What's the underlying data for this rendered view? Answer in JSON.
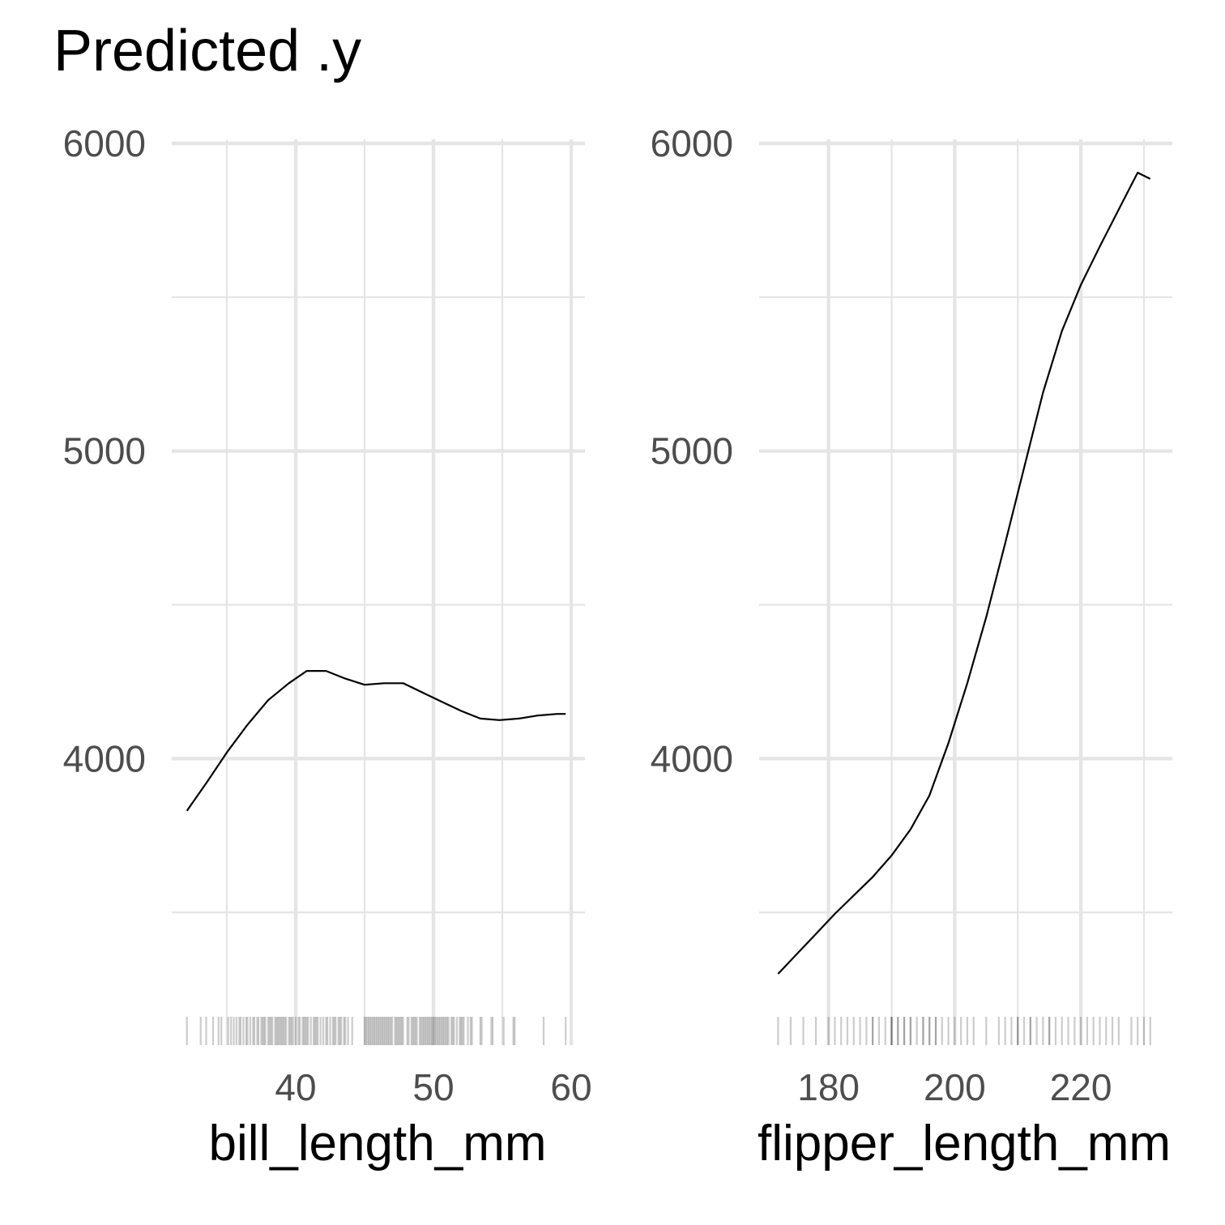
{
  "title": "Predicted .y",
  "colors": {
    "grid": "#e5e5e5",
    "line": "#000000",
    "tick_text": "#4d4d4d",
    "rug": "#000000"
  },
  "chart_data": [
    {
      "type": "line",
      "xlabel": "bill_length_mm",
      "ylabel": "",
      "xlim": [
        31,
        61
      ],
      "ylim": [
        3200,
        6000
      ],
      "x_ticks": [
        40,
        50,
        60
      ],
      "x_minor": [
        35,
        45,
        55
      ],
      "y_ticks": [
        4000,
        5000,
        6000
      ],
      "y_tick_labels": [
        "4000",
        "5000",
        "6000"
      ],
      "y_minor": [
        3500,
        4500,
        5500
      ],
      "grid": true,
      "series": [
        {
          "x": [
            32.1,
            33.5,
            35,
            36.5,
            38,
            39.5,
            40.8,
            42.2,
            43.6,
            45,
            46.4,
            47.8,
            49.2,
            50.6,
            52,
            53.4,
            54.8,
            56.2,
            57.6,
            59,
            59.6
          ],
          "y": [
            3830,
            3920,
            4020,
            4110,
            4190,
            4245,
            4285,
            4285,
            4260,
            4240,
            4245,
            4245,
            4215,
            4185,
            4155,
            4130,
            4125,
            4130,
            4140,
            4145,
            4145
          ]
        }
      ],
      "rug": [
        32.1,
        33.1,
        33.5,
        34.0,
        34.4,
        34.6,
        35.1,
        35.3,
        35.5,
        35.7,
        35.9,
        36.0,
        36.2,
        36.4,
        36.5,
        36.7,
        36.9,
        37.0,
        37.2,
        37.3,
        37.5,
        37.6,
        37.7,
        37.8,
        38.0,
        38.1,
        38.2,
        38.3,
        38.5,
        38.6,
        38.7,
        38.8,
        38.9,
        39.0,
        39.1,
        39.2,
        39.3,
        39.5,
        39.6,
        39.7,
        39.8,
        40.0,
        40.2,
        40.3,
        40.5,
        40.6,
        40.7,
        40.8,
        40.9,
        41.1,
        41.3,
        41.4,
        41.5,
        41.6,
        41.8,
        42.0,
        42.2,
        42.3,
        42.5,
        42.7,
        42.8,
        42.9,
        43.1,
        43.2,
        43.3,
        43.5,
        43.6,
        43.8,
        44.1,
        45.0,
        45.1,
        45.2,
        45.3,
        45.4,
        45.5,
        45.6,
        45.7,
        45.8,
        45.9,
        46.0,
        46.1,
        46.2,
        46.3,
        46.4,
        46.5,
        46.6,
        46.7,
        46.8,
        46.9,
        47.0,
        47.2,
        47.3,
        47.4,
        47.5,
        47.6,
        47.7,
        47.8,
        48.1,
        48.2,
        48.4,
        48.5,
        48.6,
        48.7,
        48.8,
        49.0,
        49.1,
        49.2,
        49.3,
        49.4,
        49.5,
        49.6,
        49.7,
        49.8,
        49.9,
        50.0,
        50.1,
        50.2,
        50.3,
        50.4,
        50.5,
        50.6,
        50.7,
        50.8,
        50.9,
        51.0,
        51.1,
        51.3,
        51.4,
        51.5,
        51.7,
        51.9,
        52.0,
        52.1,
        52.2,
        52.5,
        52.7,
        52.8,
        53.4,
        53.5,
        54.2,
        54.3,
        55.1,
        55.8,
        55.9,
        58.0,
        59.6
      ],
      "rug_extent": [
        31,
        61
      ]
    },
    {
      "type": "line",
      "xlabel": "flipper_length_mm",
      "ylabel": "",
      "xlim": [
        169,
        234.5
      ],
      "ylim": [
        3200,
        6000
      ],
      "x_ticks": [
        180,
        200,
        220
      ],
      "x_minor": [
        190,
        210,
        230
      ],
      "y_ticks": [
        4000,
        5000,
        6000
      ],
      "y_tick_labels": [
        "4000",
        "5000",
        "6000"
      ],
      "y_minor": [
        3500,
        4500,
        5500
      ],
      "grid": true,
      "series": [
        {
          "x": [
            172,
            175,
            178,
            181,
            184,
            187,
            190,
            193,
            196,
            199,
            202,
            205,
            208,
            211,
            214,
            217,
            220,
            223,
            226,
            229,
            231
          ],
          "y": [
            3300,
            3365,
            3430,
            3495,
            3555,
            3615,
            3685,
            3770,
            3880,
            4050,
            4245,
            4460,
            4700,
            4945,
            5190,
            5390,
            5540,
            5665,
            5785,
            5905,
            5885
          ]
        }
      ],
      "rug": [
        172,
        174,
        176,
        178,
        180,
        181,
        182,
        183,
        184,
        185,
        186,
        187,
        187,
        188,
        189,
        190,
        190,
        190,
        191,
        191,
        192,
        192,
        193,
        193,
        194,
        195,
        195,
        196,
        196,
        197,
        197,
        198,
        199,
        200,
        201,
        202,
        203,
        205,
        207,
        208,
        209,
        210,
        210,
        211,
        212,
        212,
        213,
        214,
        215,
        215,
        216,
        217,
        218,
        219,
        220,
        221,
        222,
        223,
        224,
        225,
        226,
        228,
        229,
        230,
        231
      ],
      "rug_extent": [
        169,
        234.5
      ]
    }
  ]
}
